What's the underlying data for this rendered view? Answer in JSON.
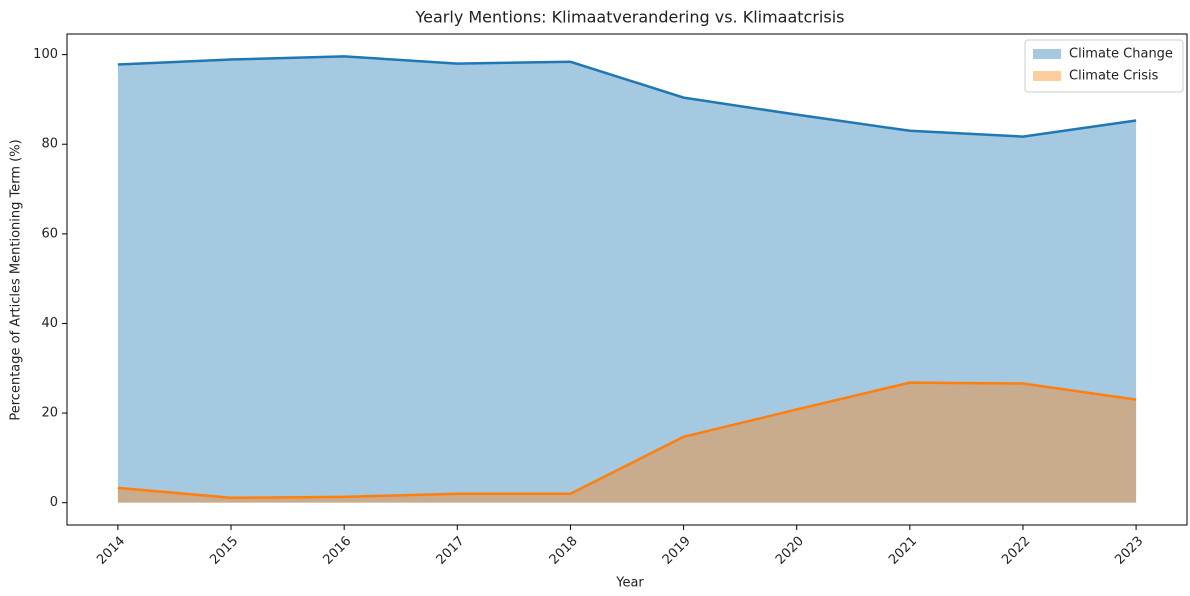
{
  "chart_data": {
    "type": "area",
    "title": "Yearly Mentions: Klimaatverandering vs. Klimaatcrisis",
    "xlabel": "Year",
    "ylabel": "Percentage of Articles Mentioning Term (%)",
    "x": [
      2014,
      2015,
      2016,
      2017,
      2018,
      2019,
      2020,
      2021,
      2022,
      2023
    ],
    "series": [
      {
        "name": "Climate Change",
        "color": "#1f77b4",
        "values": [
          97.8,
          98.9,
          99.6,
          98.0,
          98.4,
          90.4,
          86.6,
          83.0,
          81.7,
          85.3
        ]
      },
      {
        "name": "Climate Crisis",
        "color": "#ff7f0e",
        "values": [
          3.3,
          1.1,
          1.3,
          2.0,
          2.0,
          14.7,
          20.8,
          26.8,
          26.6,
          23.0
        ]
      }
    ],
    "xlim": [
      2013.55,
      2023.45
    ],
    "xticks": [
      2014,
      2015,
      2016,
      2017,
      2018,
      2019,
      2020,
      2021,
      2022,
      2023
    ],
    "ylim": [
      -4.98,
      104.6
    ],
    "yticks": [
      0,
      20,
      40,
      60,
      80,
      100
    ],
    "legend": "upper right",
    "grid": false
  }
}
